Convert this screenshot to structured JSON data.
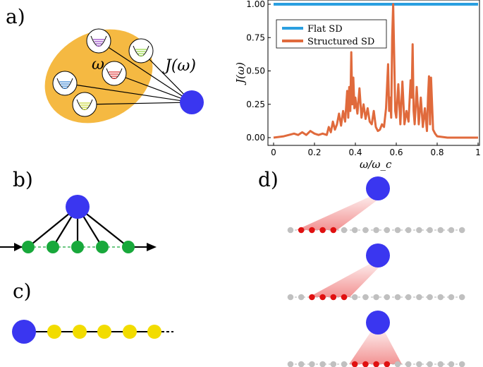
{
  "panels": {
    "a": {
      "label": "a)",
      "omega_label": "ω",
      "coupling_label": "J(ω)",
      "colors": {
        "bath_fill": "#f5b942",
        "system": "#3a36f0",
        "modes": [
          "#9b4fc9",
          "#9ad94a",
          "#e0383a",
          "#3a86d4",
          "#c8d93a"
        ]
      }
    },
    "b": {
      "label": "b)",
      "colors": {
        "system": "#3a36f0",
        "site": "#18a83b"
      }
    },
    "c": {
      "label": "c)",
      "colors": {
        "system": "#3a36f0",
        "site": "#f2dc00"
      }
    },
    "d": {
      "label": "d)",
      "colors": {
        "system": "#3a36f0",
        "site": "#c0c0c0",
        "active": "#e01010",
        "cone": "#f08080"
      }
    }
  },
  "chart_data": {
    "type": "line",
    "xlabel": "ω/ω_c",
    "ylabel": "J(ω)",
    "xlim": [
      0,
      1
    ],
    "ylim": [
      0,
      1
    ],
    "xticks": [
      "0",
      "0.2",
      "0.4",
      "0.6",
      "0.8",
      "1"
    ],
    "yticks": [
      "0.00",
      "0.25",
      "0.50",
      "0.75",
      "1.00"
    ],
    "grid": false,
    "legend_position": "top-left",
    "series": [
      {
        "name": "Flat SD",
        "color": "#2a9fe0",
        "x": [
          0,
          1
        ],
        "y": [
          1.0,
          1.0
        ]
      },
      {
        "name": "Structured SD",
        "color": "#e06a3c",
        "x": [
          0,
          0.05,
          0.1,
          0.12,
          0.14,
          0.16,
          0.18,
          0.2,
          0.22,
          0.24,
          0.26,
          0.27,
          0.28,
          0.29,
          0.3,
          0.31,
          0.32,
          0.33,
          0.34,
          0.35,
          0.36,
          0.365,
          0.37,
          0.375,
          0.38,
          0.385,
          0.39,
          0.395,
          0.4,
          0.41,
          0.42,
          0.43,
          0.44,
          0.45,
          0.46,
          0.47,
          0.48,
          0.49,
          0.5,
          0.51,
          0.52,
          0.53,
          0.54,
          0.55,
          0.56,
          0.565,
          0.57,
          0.575,
          0.58,
          0.585,
          0.59,
          0.595,
          0.6,
          0.61,
          0.62,
          0.63,
          0.64,
          0.65,
          0.66,
          0.67,
          0.675,
          0.68,
          0.685,
          0.69,
          0.7,
          0.71,
          0.72,
          0.73,
          0.74,
          0.75,
          0.755,
          0.76,
          0.765,
          0.77,
          0.78,
          0.79,
          0.8,
          0.85,
          0.9,
          0.95,
          1.0
        ],
        "y": [
          0.0,
          0.01,
          0.03,
          0.02,
          0.04,
          0.02,
          0.05,
          0.03,
          0.02,
          0.03,
          0.02,
          0.08,
          0.04,
          0.12,
          0.06,
          0.1,
          0.18,
          0.09,
          0.2,
          0.12,
          0.35,
          0.15,
          0.38,
          0.2,
          0.64,
          0.25,
          0.45,
          0.22,
          0.3,
          0.18,
          0.37,
          0.15,
          0.25,
          0.14,
          0.22,
          0.12,
          0.1,
          0.2,
          0.08,
          0.05,
          0.06,
          0.1,
          0.08,
          0.22,
          0.55,
          0.2,
          0.3,
          0.15,
          0.75,
          1.0,
          0.6,
          0.2,
          0.15,
          0.4,
          0.1,
          0.42,
          0.1,
          0.2,
          0.12,
          0.43,
          0.3,
          0.7,
          0.2,
          0.1,
          0.38,
          0.1,
          0.3,
          0.08,
          0.22,
          0.05,
          0.3,
          0.46,
          0.1,
          0.45,
          0.06,
          0.03,
          0.01,
          0.0,
          0.0,
          0.0,
          0.0
        ]
      }
    ]
  }
}
